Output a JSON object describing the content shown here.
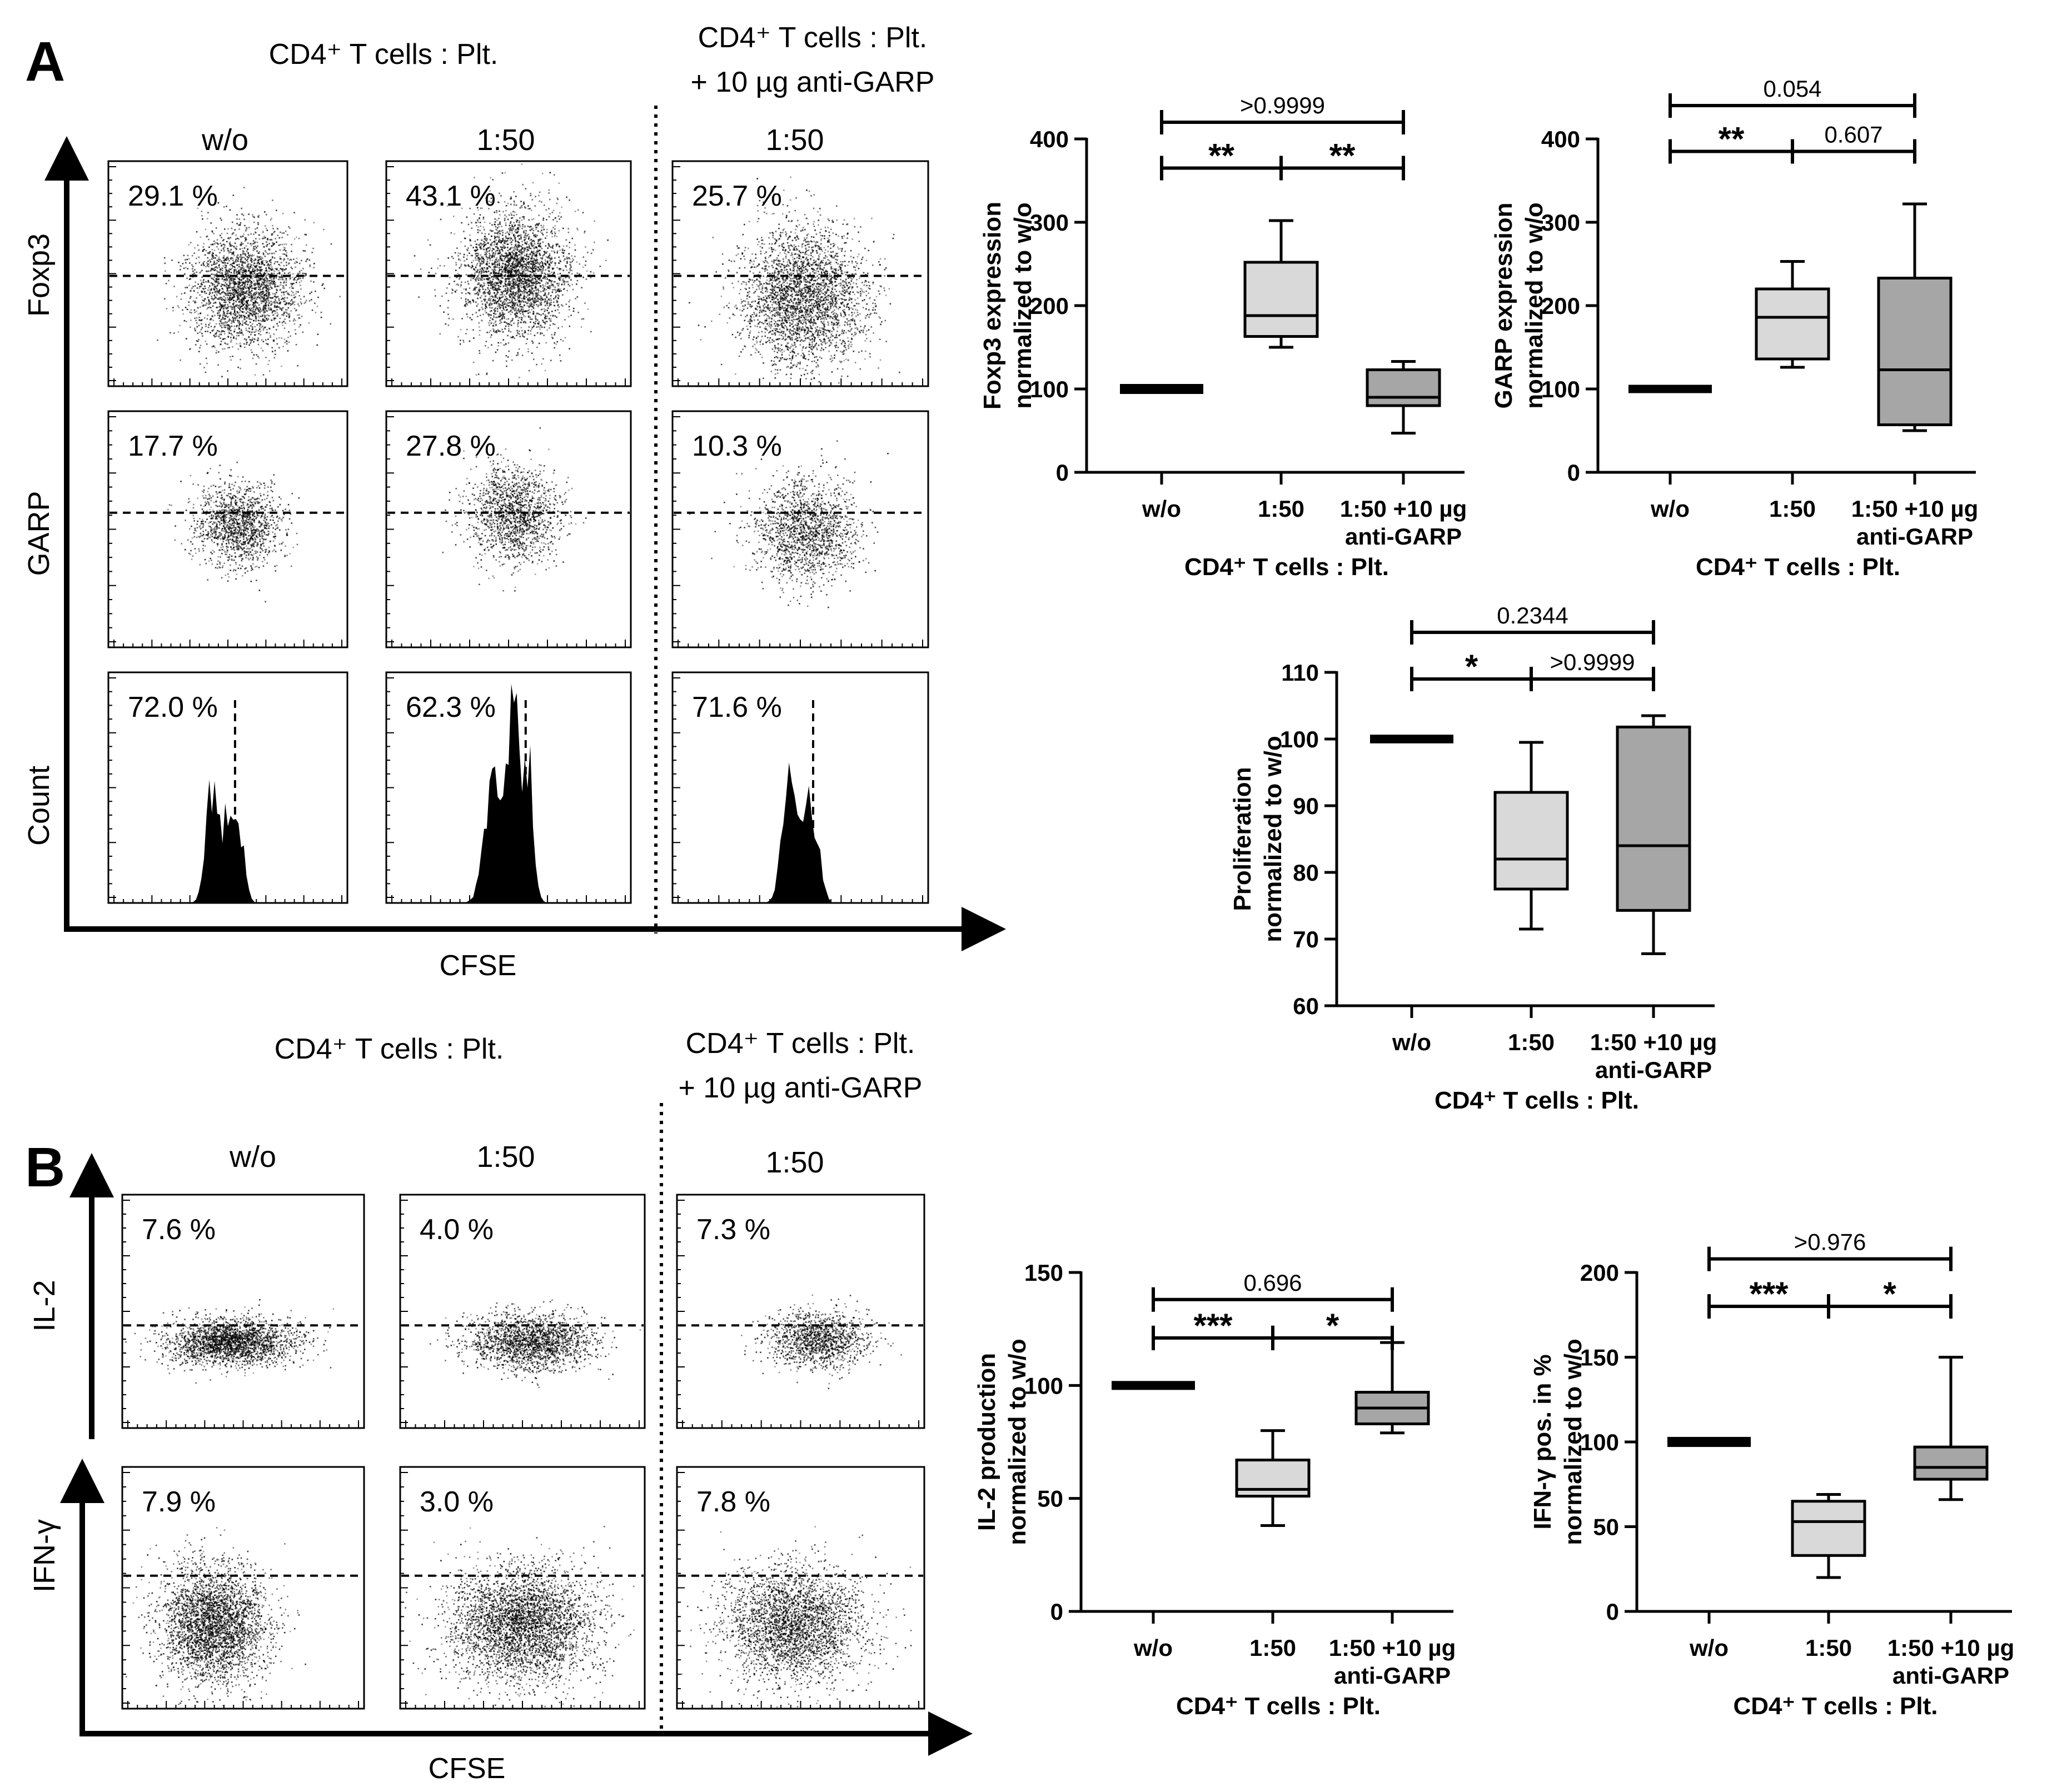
{
  "panel_labels": [
    "A",
    "B"
  ],
  "panel_a": {
    "header_left": "CD4⁺ T cells : Plt.",
    "header_right_line1": "CD4⁺ T cells : Plt.",
    "header_right_line2": "+ 10 µg anti-GARP",
    "columns": [
      "w/o",
      "1:50",
      "1:50"
    ],
    "rows": [
      {
        "label": "Foxp3",
        "percents": [
          "29.1 %",
          "43.1 %",
          "25.7 %"
        ]
      },
      {
        "label": "GARP",
        "percents": [
          "17.7 %",
          "27.8 %",
          "10.3 %"
        ]
      },
      {
        "label": "Count",
        "percents": [
          "72.0 %",
          "62.3 %",
          "71.6 %"
        ]
      }
    ],
    "x_axis_label": "CFSE"
  },
  "panel_b": {
    "header_left": "CD4⁺ T cells : Plt.",
    "header_right_line1": "CD4⁺ T cells : Plt.",
    "header_right_line2": "+ 10 µg anti-GARP",
    "columns": [
      "w/o",
      "1:50",
      "1:50"
    ],
    "rows": [
      {
        "label": "IL-2",
        "percents": [
          "7.6 %",
          "4.0 %",
          "7.3 %"
        ]
      },
      {
        "label": "IFN-γ",
        "percents": [
          "7.9 %",
          "3.0 %",
          "7.8 %"
        ]
      }
    ],
    "x_axis_label": "CFSE"
  },
  "colors": {
    "box_1_50": "#d9d9d9",
    "box_anti_garp": "#a6a6a6",
    "ink": "#000000"
  },
  "chart_data": [
    {
      "type": "box",
      "ylabel_line1": "Foxp3 expression",
      "ylabel_line2": "normalized to w/o",
      "xlabel": "CD4⁺ T cells : Plt.",
      "categories": [
        "w/o",
        "1:50",
        "1:50 +10 µg anti-GARP"
      ],
      "category_lines": [
        [
          "w/o"
        ],
        [
          "1:50"
        ],
        [
          "1:50 +10 µg",
          "anti-GARP"
        ]
      ],
      "ylim": [
        0,
        400
      ],
      "yticks": [
        0,
        100,
        200,
        300,
        400
      ],
      "boxes": [
        {
          "min": 97,
          "q1": 98,
          "median": 100,
          "q3": 102,
          "max": 103
        },
        {
          "min": 150,
          "q1": 163,
          "median": 188,
          "q3": 252,
          "max": 302
        },
        {
          "min": 47,
          "q1": 80,
          "median": 90,
          "q3": 123,
          "max": 133
        }
      ],
      "comparisons": [
        {
          "from": 0,
          "to": 2,
          "label": ">0.9999",
          "y": 420
        },
        {
          "from": 0,
          "to": 1,
          "label": "**",
          "y": 365
        },
        {
          "from": 1,
          "to": 2,
          "label": "**",
          "y": 365
        }
      ]
    },
    {
      "type": "box",
      "ylabel_line1": "GARP expression",
      "ylabel_line2": "normalized to w/o",
      "xlabel": "CD4⁺ T cells : Plt.",
      "categories": [
        "w/o",
        "1:50",
        "1:50 +10 µg anti-GARP"
      ],
      "category_lines": [
        [
          "w/o"
        ],
        [
          "1:50"
        ],
        [
          "1:50 +10 µg",
          "anti-GARP"
        ]
      ],
      "ylim": [
        0,
        400
      ],
      "yticks": [
        0,
        100,
        200,
        300,
        400
      ],
      "boxes": [
        {
          "min": 98,
          "q1": 99,
          "median": 100,
          "q3": 101,
          "max": 102
        },
        {
          "min": 126,
          "q1": 136,
          "median": 186,
          "q3": 220,
          "max": 253
        },
        {
          "min": 50,
          "q1": 57,
          "median": 123,
          "q3": 233,
          "max": 322
        }
      ],
      "comparisons": [
        {
          "from": 0,
          "to": 2,
          "label": "0.054",
          "y": 440
        },
        {
          "from": 0,
          "to": 1,
          "label": "**",
          "y": 385
        },
        {
          "from": 1,
          "to": 2,
          "label": "0.607",
          "y": 385
        }
      ]
    },
    {
      "type": "box",
      "ylabel_line1": "Proliferation",
      "ylabel_line2": "normalized to w/o",
      "xlabel": "CD4⁺ T cells : Plt.",
      "categories": [
        "w/o",
        "1:50",
        "1:50 +10 µg anti-GARP"
      ],
      "category_lines": [
        [
          "w/o"
        ],
        [
          "1:50"
        ],
        [
          "1:50 +10 µg",
          "anti-GARP"
        ]
      ],
      "ylim": [
        60,
        110
      ],
      "yticks": [
        60,
        70,
        80,
        90,
        100,
        110
      ],
      "boxes": [
        {
          "min": 99.7,
          "q1": 99.85,
          "median": 100,
          "q3": 100.15,
          "max": 100.3
        },
        {
          "min": 71.5,
          "q1": 77.5,
          "median": 82,
          "q3": 92,
          "max": 99.5
        },
        {
          "min": 67.8,
          "q1": 74.3,
          "median": 84,
          "q3": 101.8,
          "max": 103.5
        }
      ],
      "comparisons": [
        {
          "from": 0,
          "to": 2,
          "label": "0.2344",
          "y": 116
        },
        {
          "from": 0,
          "to": 1,
          "label": "*",
          "y": 109
        },
        {
          "from": 1,
          "to": 2,
          "label": ">0.9999",
          "y": 109
        }
      ]
    },
    {
      "type": "box",
      "ylabel_line1": "IL-2 production",
      "ylabel_line2": "normalized to w/o",
      "xlabel": "CD4⁺ T cells : Plt.",
      "categories": [
        "w/o",
        "1:50",
        "1:50 +10 µg anti-GARP"
      ],
      "category_lines": [
        [
          "w/o"
        ],
        [
          "1:50"
        ],
        [
          "1:50 +10 µg",
          "anti-GARP"
        ]
      ],
      "ylim": [
        0,
        150
      ],
      "yticks": [
        0,
        50,
        100,
        150
      ],
      "boxes": [
        {
          "min": 99,
          "q1": 99.5,
          "median": 100,
          "q3": 100.5,
          "max": 101
        },
        {
          "min": 38,
          "q1": 51,
          "median": 54,
          "q3": 67,
          "max": 80
        },
        {
          "min": 79,
          "q1": 83,
          "median": 90,
          "q3": 97,
          "max": 119
        }
      ],
      "comparisons": [
        {
          "from": 0,
          "to": 2,
          "label": "0.696",
          "y": 138
        },
        {
          "from": 0,
          "to": 1,
          "label": "***",
          "y": 121
        },
        {
          "from": 1,
          "to": 2,
          "label": "*",
          "y": 121
        }
      ]
    },
    {
      "type": "box",
      "ylabel_line1": "IFN-γ pos. in %",
      "ylabel_line2": "normalized to w/o",
      "xlabel": "CD4⁺ T cells : Plt.",
      "categories": [
        "w/o",
        "1:50",
        "1:50 +10 µg anti-GARP"
      ],
      "category_lines": [
        [
          "w/o"
        ],
        [
          "1:50"
        ],
        [
          "1:50 +10 µg",
          "anti-GARP"
        ]
      ],
      "ylim": [
        0,
        200
      ],
      "yticks": [
        0,
        50,
        100,
        150,
        200
      ],
      "boxes": [
        {
          "min": 98,
          "q1": 99,
          "median": 100,
          "q3": 101,
          "max": 102
        },
        {
          "min": 20,
          "q1": 33,
          "median": 53,
          "q3": 65,
          "max": 69
        },
        {
          "min": 66,
          "q1": 78,
          "median": 85,
          "q3": 97,
          "max": 150
        }
      ],
      "comparisons": [
        {
          "from": 0,
          "to": 2,
          "label": ">0.976",
          "y": 208
        },
        {
          "from": 0,
          "to": 1,
          "label": "***",
          "y": 180
        },
        {
          "from": 1,
          "to": 2,
          "label": "*",
          "y": 180
        }
      ]
    }
  ]
}
